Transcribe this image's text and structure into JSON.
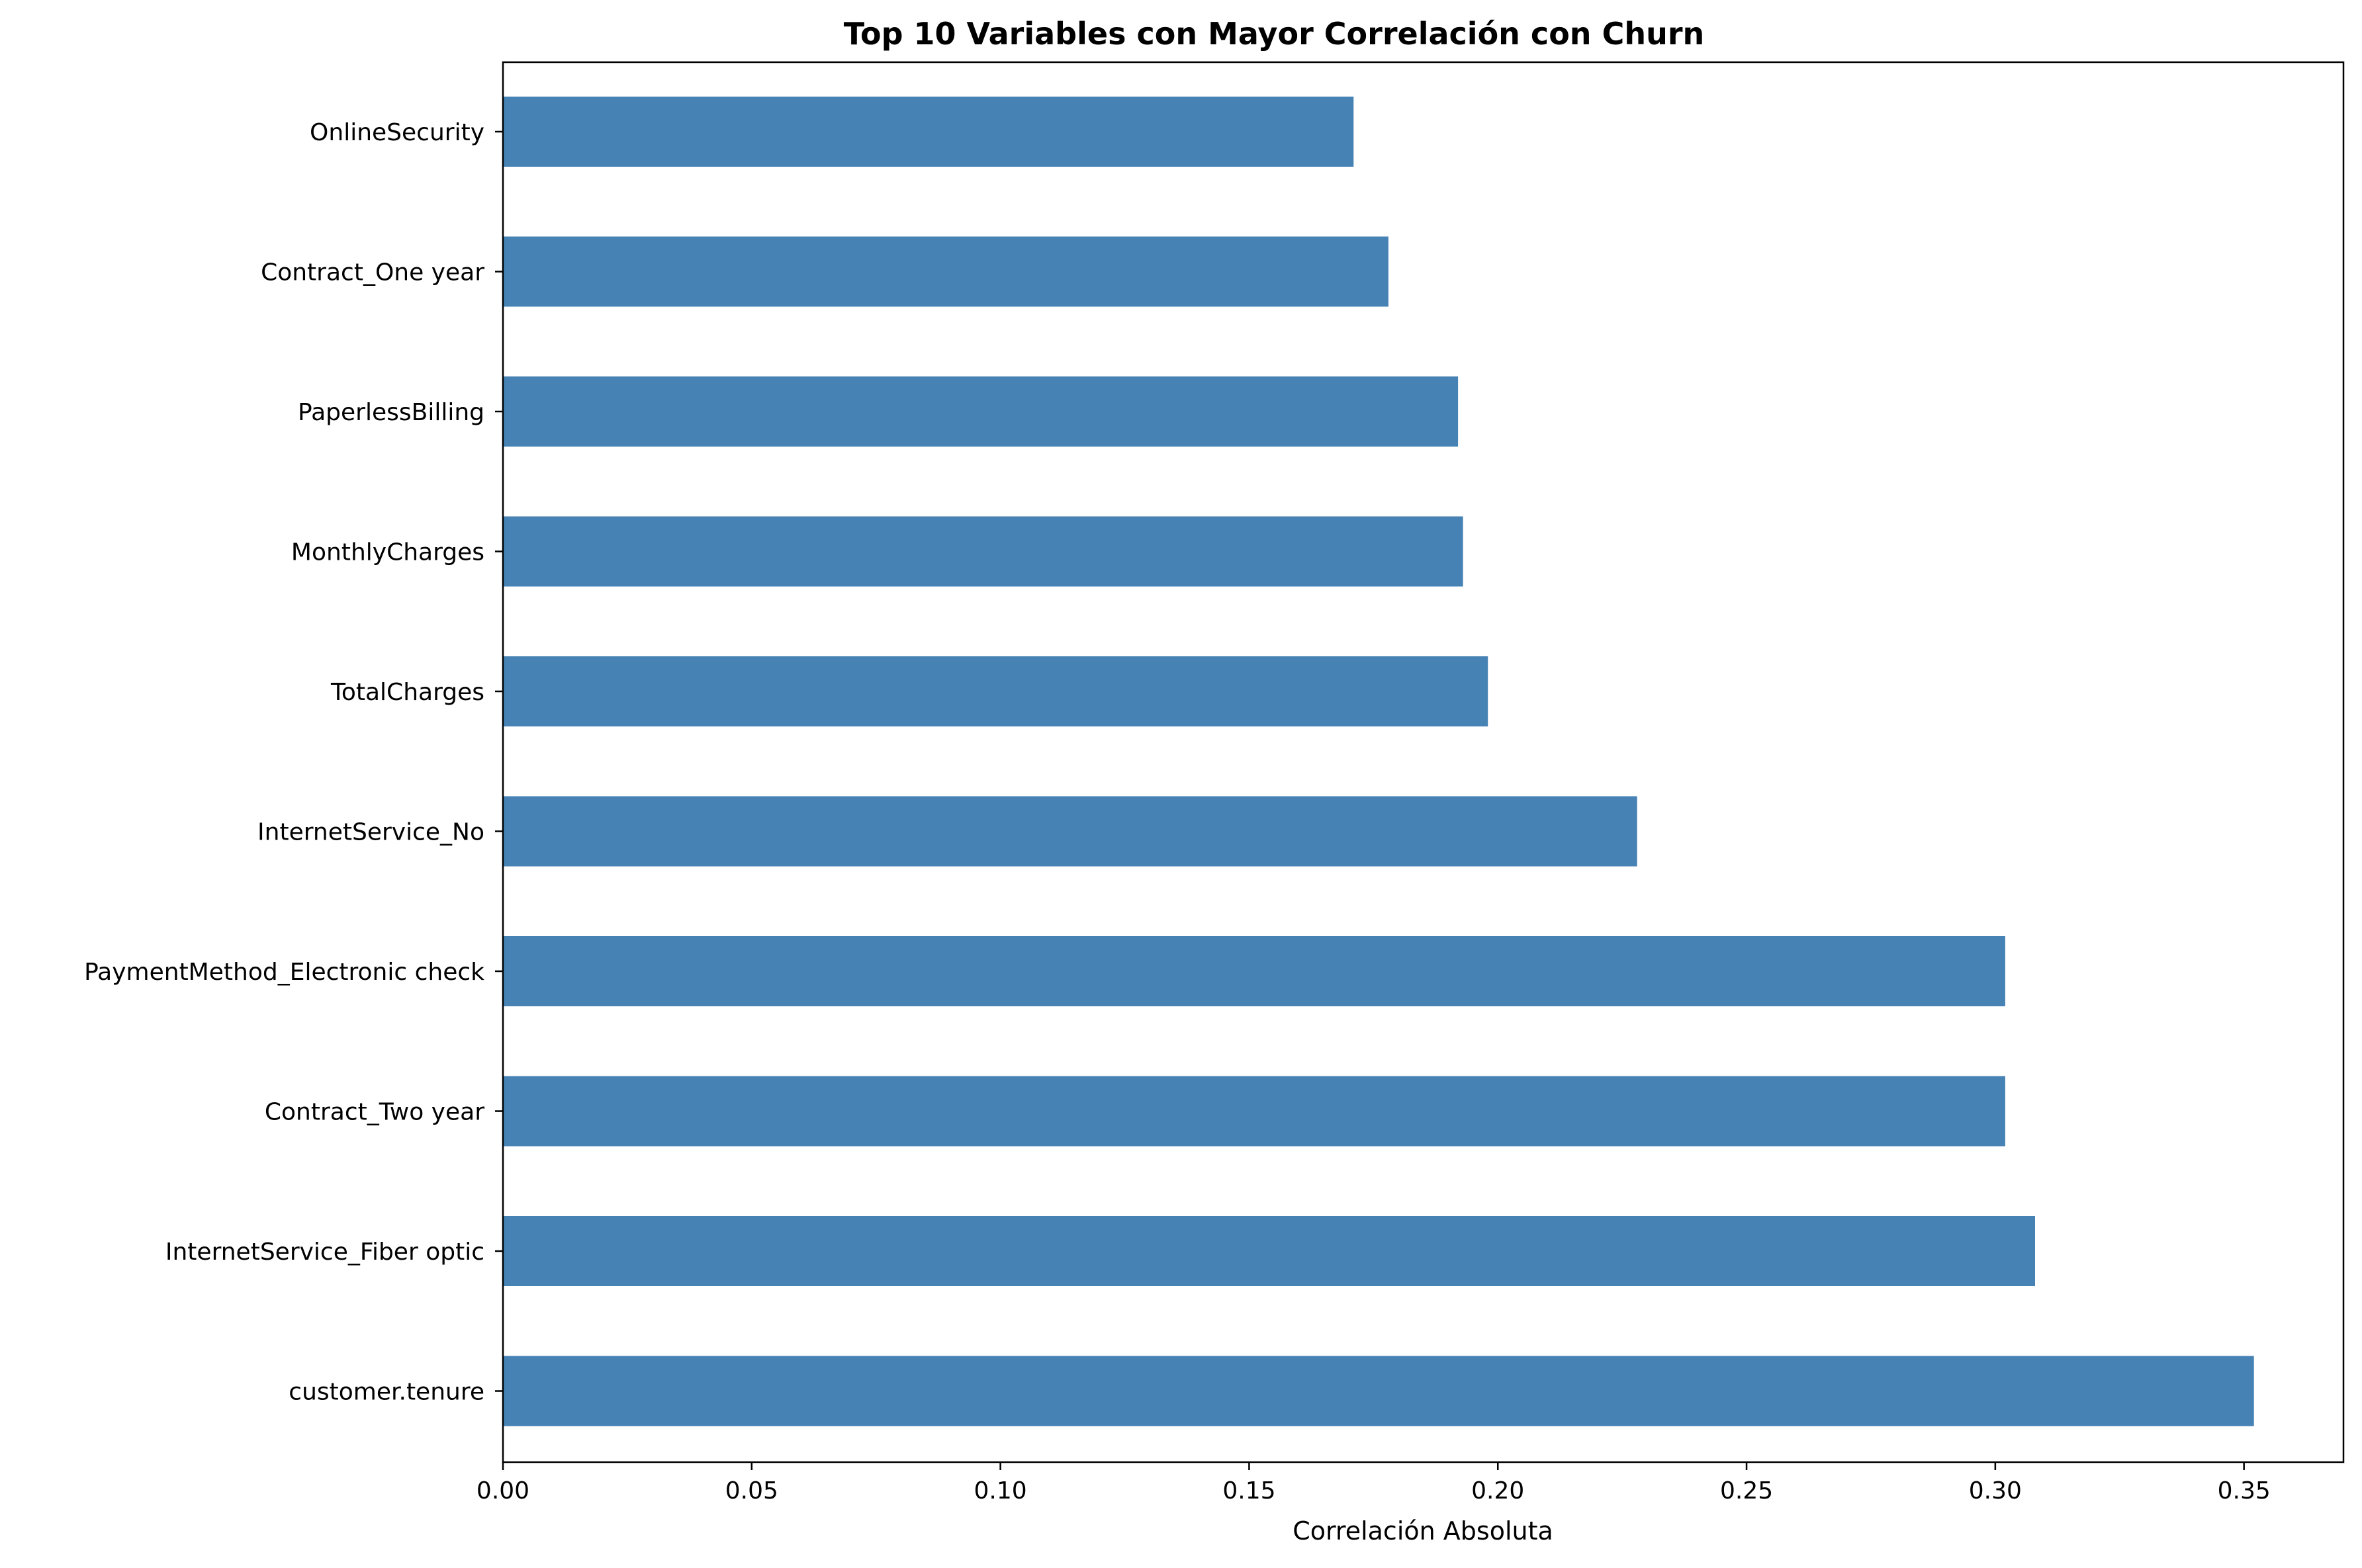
{
  "chart_data": {
    "type": "bar",
    "orientation": "horizontal",
    "title": "Top 10 Variables con Mayor Correlación con Churn",
    "xlabel": "Correlación Absoluta",
    "ylabel": "",
    "xlim": [
      0,
      0.37
    ],
    "grid": false,
    "bar_color": "#4682b4",
    "categories": [
      "OnlineSecurity",
      "Contract_One year",
      "PaperlessBilling",
      "MonthlyCharges",
      "TotalCharges",
      "InternetService_No",
      "PaymentMethod_Electronic check",
      "Contract_Two year",
      "InternetService_Fiber optic",
      "customer.tenure"
    ],
    "values": [
      0.171,
      0.178,
      0.192,
      0.193,
      0.198,
      0.228,
      0.302,
      0.302,
      0.308,
      0.352
    ],
    "xticks": [
      0.0,
      0.05,
      0.1,
      0.15,
      0.2,
      0.25,
      0.3,
      0.35
    ],
    "xtick_labels": [
      "0.00",
      "0.05",
      "0.10",
      "0.15",
      "0.20",
      "0.25",
      "0.30",
      "0.35"
    ]
  }
}
